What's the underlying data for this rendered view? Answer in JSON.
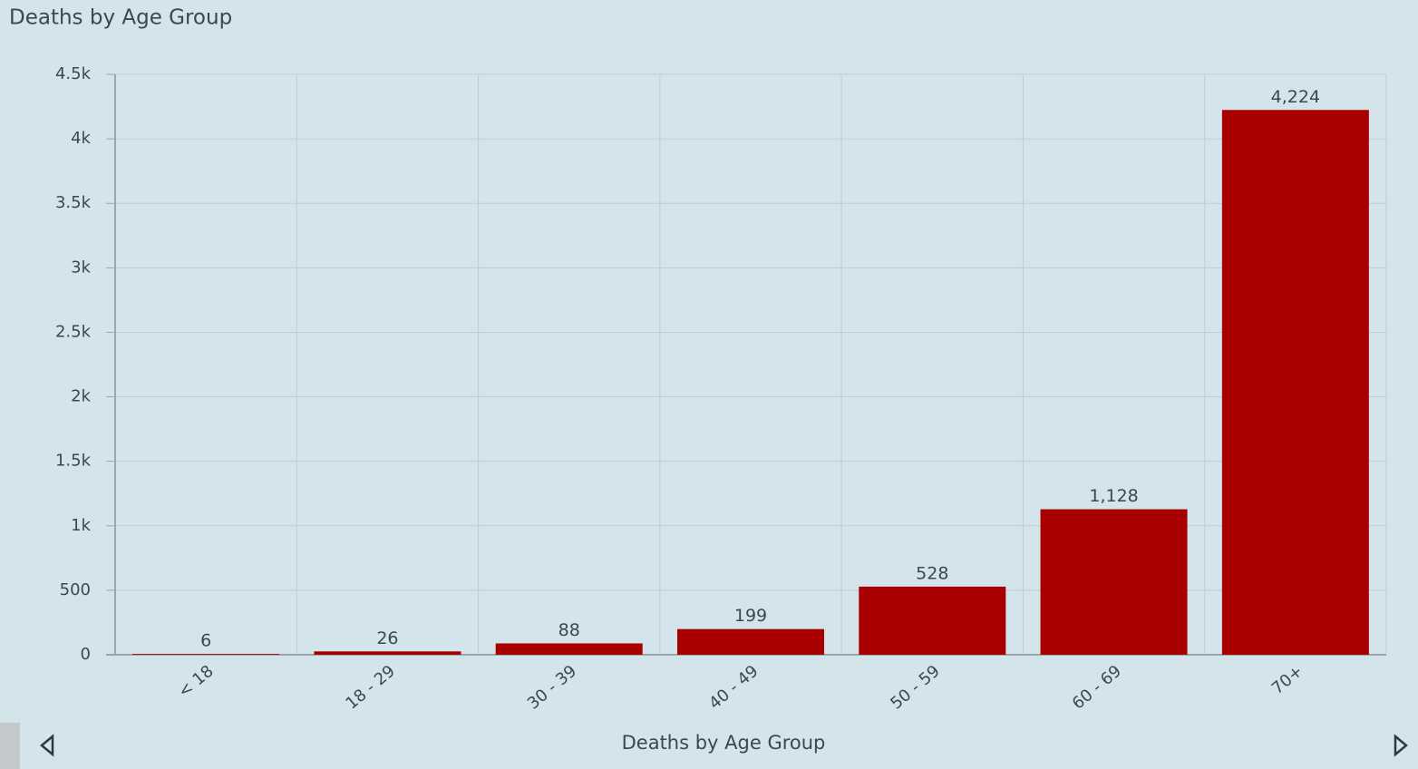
{
  "chart_data": {
    "type": "bar",
    "title": "Deaths by Age Group",
    "caption": "Deaths by Age Group",
    "categories": [
      "< 18",
      "18 - 29",
      "30 - 39",
      "40 - 49",
      "50 - 59",
      "60 - 69",
      "70+"
    ],
    "values": [
      6,
      26,
      88,
      199,
      528,
      1128,
      4224
    ],
    "value_labels": [
      "6",
      "26",
      "88",
      "199",
      "528",
      "1,128",
      "4,224"
    ],
    "color": "#a80000",
    "ylim": [
      0,
      4500
    ],
    "yticks": [
      0,
      500,
      {
        "value": 1000,
        "label": "1k"
      },
      {
        "value": 1500,
        "label": "1.5k"
      },
      {
        "value": 2000,
        "label": "2k"
      },
      {
        "value": 2500,
        "label": "2.5k"
      },
      {
        "value": 3000,
        "label": "3k"
      },
      {
        "value": 3500,
        "label": "3.5k"
      },
      {
        "value": 4000,
        "label": "4k"
      },
      {
        "value": 4500,
        "label": "4.5k"
      }
    ],
    "grid": true
  }
}
